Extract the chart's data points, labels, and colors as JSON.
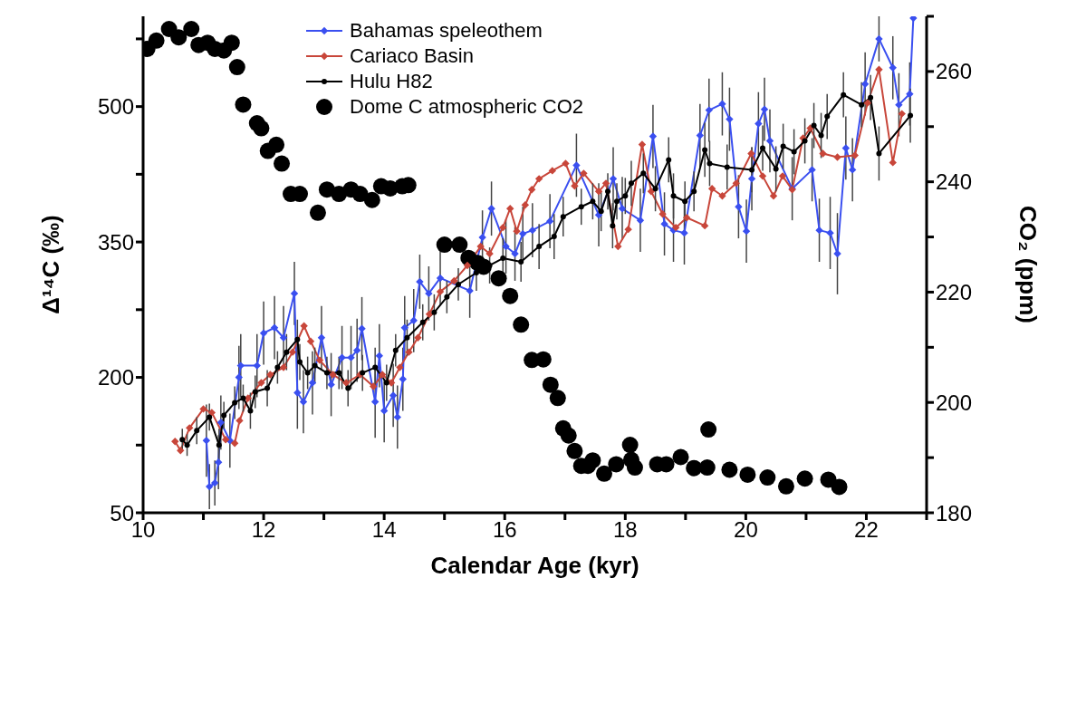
{
  "chart_data": {
    "type": "line",
    "xlabel": "Calendar Age (kyr)",
    "ylabel": "Δ¹⁴C (‰)",
    "y2label": "CO₂ (ppm)",
    "xlim": [
      10,
      23
    ],
    "xticks": [
      10,
      {
        "value": 11,
        "label": null
      },
      12,
      {
        "value": 13,
        "label": null
      },
      14,
      {
        "value": 15,
        "label": null
      },
      16,
      {
        "value": 17,
        "label": null
      },
      18,
      {
        "value": 19,
        "label": null
      },
      20,
      {
        "value": 21,
        "label": null
      },
      22,
      {
        "value": 23,
        "label": null
      }
    ],
    "ylim": [
      50,
      600
    ],
    "yticks": [
      50,
      {
        "value": 125,
        "label": null
      },
      200,
      {
        "value": 275,
        "label": null
      },
      350,
      {
        "value": 425,
        "label": null
      },
      500,
      {
        "value": 575,
        "label": null
      }
    ],
    "y2lim": [
      180,
      270
    ],
    "y2ticks": [
      180,
      {
        "value": 190,
        "label": null
      },
      200,
      {
        "value": 210,
        "label": null
      },
      220,
      {
        "value": 230,
        "label": null
      },
      240,
      {
        "value": 250,
        "label": null
      },
      260,
      {
        "value": 270,
        "label": null
      }
    ],
    "grid": false,
    "legend": "top",
    "line_style": "solid",
    "series": [
      {
        "name": "Bahamas speleothem",
        "color": "#3a4ff0",
        "marker": "diamond",
        "x": [
          11.05,
          11.1,
          11.19,
          11.25,
          11.29,
          11.44,
          11.59,
          11.62,
          11.89,
          12.0,
          12.18,
          12.33,
          12.51,
          12.56,
          12.66,
          12.81,
          12.96,
          13.12,
          13.3,
          13.45,
          13.55,
          13.63,
          13.85,
          13.92,
          14.0,
          14.15,
          14.22,
          14.31,
          14.34,
          14.49,
          14.59,
          14.74,
          14.93,
          15.42,
          15.63,
          15.78,
          16.02,
          16.17,
          16.3,
          16.46,
          16.75,
          17.19,
          17.56,
          17.8,
          17.95,
          18.25,
          18.46,
          18.65,
          18.8,
          18.98,
          19.24,
          19.39,
          19.61,
          19.73,
          19.88,
          20.01,
          20.1,
          20.21,
          20.31,
          20.4,
          20.77,
          21.1,
          21.22,
          21.4,
          21.52,
          21.66,
          21.77,
          21.98,
          22.21,
          22.44,
          22.54,
          22.72,
          22.78
        ],
        "values": [
          130,
          79,
          83,
          106,
          150,
          130,
          200,
          213,
          213,
          249,
          255,
          244,
          293,
          183,
          173,
          194,
          244,
          192,
          222,
          222,
          230,
          254,
          173,
          224,
          163,
          180,
          156,
          198,
          255,
          263,
          306,
          293,
          310,
          296,
          355,
          387,
          345,
          337,
          359,
          363,
          373,
          435,
          380,
          420,
          387,
          374,
          467,
          370,
          363,
          360,
          468,
          496,
          503,
          486,
          389,
          362,
          420,
          481,
          497,
          462,
          409,
          430,
          363,
          360,
          337,
          454,
          430,
          525,
          575,
          543,
          502,
          514,
          598
        ],
        "errors": [
          40,
          25,
          25,
          30,
          30,
          30,
          35,
          35,
          35,
          35,
          35,
          35,
          35,
          40,
          35,
          35,
          35,
          35,
          35,
          35,
          35,
          35,
          40,
          35,
          35,
          35,
          35,
          35,
          35,
          35,
          30,
          30,
          30,
          30,
          30,
          30,
          30,
          30,
          30,
          30,
          30,
          35,
          35,
          35,
          35,
          35,
          35,
          35,
          35,
          35,
          35,
          35,
          35,
          35,
          35,
          35,
          35,
          35,
          35,
          35,
          35,
          35,
          35,
          40,
          45,
          35,
          35,
          35,
          25,
          35,
          35,
          35,
          null
        ]
      },
      {
        "name": "Cariaco Basin",
        "color": "#c8463a",
        "marker": "diamond",
        "x": [
          10.53,
          10.62,
          10.77,
          11.0,
          11.14,
          11.37,
          11.52,
          11.6,
          11.74,
          11.96,
          12.11,
          12.33,
          12.48,
          12.67,
          12.78,
          12.93,
          13.15,
          13.37,
          13.6,
          13.82,
          13.97,
          14.12,
          14.26,
          14.41,
          14.56,
          14.75,
          14.93,
          15.16,
          15.38,
          15.6,
          15.75,
          15.97,
          16.09,
          16.2,
          16.34,
          16.45,
          16.57,
          16.79,
          17.01,
          17.16,
          17.31,
          17.56,
          17.68,
          17.88,
          18.05,
          18.28,
          18.43,
          18.62,
          18.84,
          19.02,
          19.32,
          19.44,
          19.61,
          19.84,
          20.09,
          20.28,
          20.46,
          20.61,
          20.77,
          20.95,
          21.07,
          21.28,
          21.52,
          21.81,
          22.02,
          22.21,
          22.44,
          22.59
        ],
        "values": [
          129,
          119,
          144,
          165,
          161,
          131,
          127,
          152,
          177,
          194,
          203,
          211,
          228,
          257,
          240,
          219,
          203,
          194,
          203,
          190,
          203,
          194,
          211,
          228,
          244,
          270,
          295,
          307,
          324,
          345,
          337,
          366,
          387,
          362,
          391,
          408,
          420,
          429,
          437,
          412,
          426,
          406,
          415,
          345,
          364,
          458,
          406,
          381,
          366,
          377,
          368,
          409,
          401,
          415,
          448,
          423,
          401,
          423,
          408,
          465,
          476,
          448,
          444,
          446,
          504,
          541,
          438,
          492
        ]
      },
      {
        "name": "Hulu H82",
        "color": "#000000",
        "marker": "circle",
        "x": [
          10.65,
          10.73,
          10.89,
          11.1,
          11.26,
          11.34,
          11.52,
          11.66,
          11.78,
          11.86,
          12.06,
          12.23,
          12.38,
          12.56,
          12.6,
          12.73,
          12.85,
          13.05,
          13.25,
          13.4,
          13.64,
          13.85,
          14.04,
          14.19,
          14.38,
          14.64,
          14.83,
          15.04,
          15.23,
          15.53,
          15.75,
          15.97,
          16.27,
          16.57,
          16.82,
          16.97,
          17.27,
          17.46,
          17.6,
          17.71,
          17.79,
          17.86,
          18.0,
          18.1,
          18.3,
          18.5,
          18.72,
          18.8,
          18.99,
          19.14,
          19.32,
          19.4,
          19.69,
          20.1,
          20.28,
          20.5,
          20.62,
          20.8,
          20.98,
          21.13,
          21.25,
          21.35,
          21.62,
          21.92,
          22.07,
          22.21,
          22.73
        ],
        "values": [
          131,
          125,
          141,
          156,
          125,
          158,
          172,
          177,
          163,
          184,
          188,
          211,
          228,
          242,
          217,
          205,
          213,
          205,
          205,
          188,
          205,
          211,
          194,
          230,
          244,
          261,
          272,
          289,
          303,
          316,
          324,
          332,
          328,
          345,
          356,
          378,
          389,
          395,
          384,
          406,
          368,
          395,
          401,
          415,
          426,
          409,
          441,
          401,
          395,
          406,
          452,
          437,
          433,
          430,
          454,
          431,
          456,
          450,
          462,
          479,
          468,
          489,
          513,
          502,
          510,
          448,
          490
        ],
        "errors": [
          12,
          12,
          15,
          15,
          18,
          15,
          18,
          15,
          20,
          18,
          20,
          18,
          20,
          22,
          20,
          18,
          20,
          18,
          18,
          20,
          20,
          22,
          20,
          18,
          20,
          20,
          20,
          18,
          18,
          20,
          20,
          22,
          22,
          25,
          25,
          22,
          20,
          20,
          22,
          20,
          25,
          20,
          20,
          25,
          22,
          25,
          25,
          25,
          22,
          22,
          30,
          25,
          25,
          25,
          25,
          25,
          25,
          25,
          25,
          25,
          25,
          25,
          25,
          25,
          25,
          30,
          30
        ]
      },
      {
        "name": "Dome C atmospheric CO2",
        "type": "scatter",
        "axis": "y2",
        "color": "#000000",
        "marker": "circle",
        "x": [
          10.07,
          10.22,
          10.43,
          10.59,
          10.8,
          10.92,
          11.07,
          11.19,
          11.34,
          11.47,
          11.56,
          11.66,
          11.89,
          11.96,
          12.07,
          12.21,
          12.3,
          12.45,
          12.6,
          12.9,
          13.05,
          13.25,
          13.45,
          13.6,
          13.8,
          13.95,
          14.1,
          14.3,
          14.4,
          15.0,
          15.25,
          15.4,
          15.55,
          15.65,
          15.9,
          16.09,
          16.27,
          16.45,
          16.64,
          16.76,
          16.88,
          16.97,
          17.06,
          17.16,
          17.27,
          17.38,
          17.46,
          17.65,
          17.85,
          18.08,
          18.1,
          18.16,
          18.53,
          18.68,
          18.92,
          19.14,
          19.36,
          19.38,
          19.73,
          20.03,
          20.36,
          20.67,
          20.98,
          21.37,
          21.55
        ],
        "values": [
          264.1,
          265.6,
          267.7,
          266.2,
          267.7,
          264.8,
          265.2,
          264.1,
          263.8,
          265.2,
          260.8,
          254.0,
          250.6,
          249.7,
          245.6,
          246.7,
          243.3,
          237.8,
          237.8,
          234.4,
          238.6,
          237.8,
          238.6,
          237.8,
          236.7,
          239.2,
          238.8,
          239.2,
          239.4,
          228.6,
          228.6,
          226.2,
          225.3,
          224.6,
          222.5,
          219.3,
          214.1,
          207.7,
          207.8,
          203.2,
          200.8,
          195.3,
          194.0,
          191.2,
          188.5,
          188.5,
          189.5,
          187.1,
          188.8,
          192.3,
          189.6,
          188.2,
          188.8,
          188.8,
          190.1,
          188.1,
          188.2,
          195.1,
          187.8,
          186.9,
          186.4,
          184.8,
          186.2,
          186.0,
          184.7
        ]
      }
    ]
  }
}
